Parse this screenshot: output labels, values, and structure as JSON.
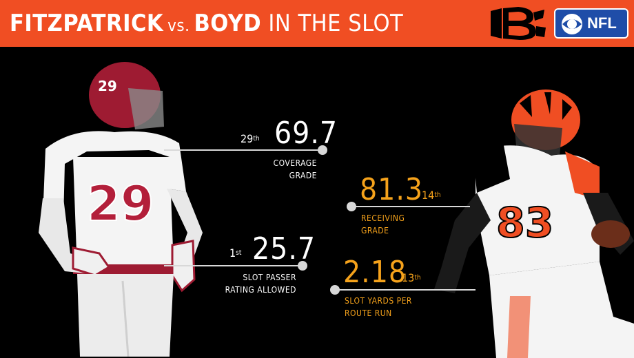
{
  "header": {
    "name1": "FITZPATRICK",
    "vs": "vs.",
    "name2": "BOYD",
    "suffix": "IN THE SLOT",
    "bg_color": "#f04e23"
  },
  "logos": {
    "team_icon": "bengals-b-logo",
    "network_icon": "cbs-eye-logo",
    "network_text": "NFL"
  },
  "players": {
    "left": {
      "jersey": "29",
      "icon": "player-fitzpatrick"
    },
    "right": {
      "jersey": "83",
      "icon": "player-boyd"
    }
  },
  "stats": {
    "fitzpatrick": [
      {
        "rank": "29",
        "rank_suffix": "th",
        "value": "69.7",
        "label_line1": "COVERAGE",
        "label_line2": "GRADE"
      },
      {
        "rank": "1",
        "rank_suffix": "st",
        "value": "25.7",
        "label_line1": "SLOT PASSER",
        "label_line2": "RATING ALLOWED"
      }
    ],
    "boyd": [
      {
        "rank": "14",
        "rank_suffix": "th",
        "value": "81.3",
        "label_line1": "RECEIVING",
        "label_line2": "GRADE"
      },
      {
        "rank": "13",
        "rank_suffix": "th",
        "value": "2.18",
        "label_line1": "SLOT YARDS PER",
        "label_line2": "ROUTE RUN"
      }
    ]
  },
  "colors": {
    "fitzpatrick_text": "#ffffff",
    "boyd_text": "#f5a21b",
    "line": "#d8d8d8"
  }
}
